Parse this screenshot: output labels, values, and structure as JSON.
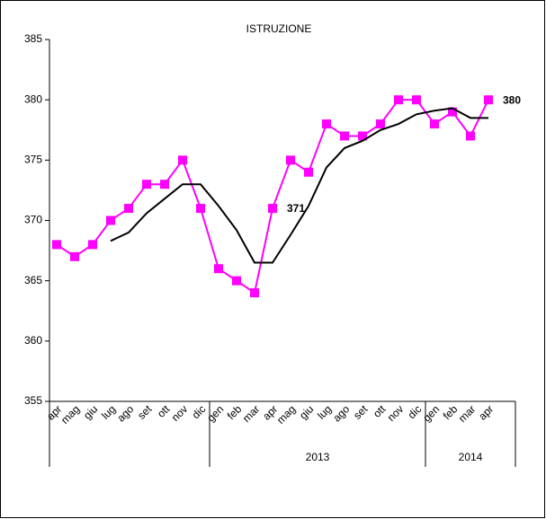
{
  "chart_data": {
    "type": "line",
    "title": "ISTRUZIONE",
    "categories": [
      "apr",
      "mag",
      "giu",
      "lug",
      "ago",
      "set",
      "ott",
      "nov",
      "dic",
      "gen",
      "feb",
      "mar",
      "apr",
      "mag",
      "giu",
      "lug",
      "ago",
      "set",
      "ott",
      "nov",
      "dic",
      "gen",
      "feb",
      "mar",
      "apr"
    ],
    "years": [
      null,
      null,
      null,
      null,
      null,
      null,
      null,
      null,
      null,
      "2013",
      "2013",
      "2013",
      "2013",
      "2013",
      "2013",
      "2013",
      "2013",
      "2013",
      "2013",
      "2013",
      "2013",
      "2014",
      "2014",
      "2014",
      "2014"
    ],
    "series": [
      {
        "color": "#ff00ff",
        "marker": "square",
        "values": [
          368,
          367,
          368,
          370,
          371,
          373,
          373,
          375,
          371,
          366,
          365,
          364,
          371,
          375,
          374,
          378,
          377,
          377,
          378,
          380,
          380,
          378,
          379,
          377,
          380
        ]
      },
      {
        "color": "#000000",
        "values": [
          null,
          null,
          null,
          368.3,
          369,
          370.6,
          371.8,
          373,
          373,
          371.2,
          369.2,
          366.5,
          366.5,
          368.8,
          371.2,
          374.4,
          376,
          376.6,
          377.5,
          378,
          378.8,
          379.1,
          379.3,
          378.5,
          378.5
        ]
      }
    ],
    "labeled_points": [
      12,
      24
    ],
    "ylim": [
      355,
      385
    ],
    "yticks": [
      355,
      360,
      365,
      370,
      375,
      380,
      385
    ]
  }
}
